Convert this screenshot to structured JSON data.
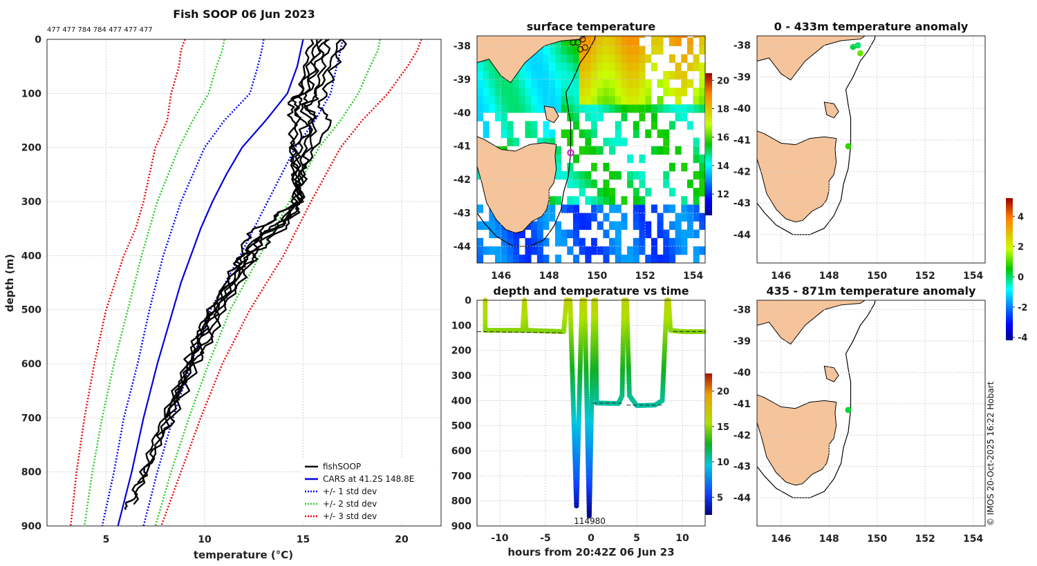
{
  "colors": {
    "fishsoop": "#000000",
    "cars": "#0000dd",
    "std1": "#0000ff",
    "std2": "#22cc22",
    "std3": "#ee0000",
    "land": "#f6c49a",
    "marker_magenta": "#cc33cc"
  },
  "chart_data": [
    {
      "id": "profile",
      "type": "line",
      "title": "Fish SOOP 06 Jun 2023",
      "subtitle": "477 477 784 784 477 477 477",
      "xlabel": "temperature (°C)",
      "ylabel": "depth (m)",
      "xlim": [
        2,
        22
      ],
      "ylim": [
        900,
        0
      ],
      "xticks": [
        5,
        10,
        15,
        20
      ],
      "yticks": [
        0,
        100,
        200,
        300,
        400,
        500,
        600,
        700,
        800,
        900
      ],
      "legend": [
        "fishSOOP",
        "CARS at 41.2S 148.8E",
        "+/- 1 std dev",
        "+/- 2 std dev",
        "+/- 3 std dev"
      ],
      "legend_position": "bottom-right",
      "cars": {
        "depth": [
          0,
          50,
          100,
          150,
          200,
          250,
          300,
          350,
          400,
          450,
          500,
          600,
          700,
          800,
          900
        ],
        "temp": [
          15.0,
          14.7,
          14.2,
          13.1,
          11.9,
          11.1,
          10.4,
          9.8,
          9.3,
          8.8,
          8.4,
          7.6,
          6.9,
          6.3,
          5.6
        ]
      },
      "std_curves": [
        {
          "name": "+/- 1 std dev",
          "depth": [
            0,
            20,
            50,
            100,
            150,
            200,
            300,
            400,
            500,
            600,
            700,
            800,
            900
          ],
          "lower": [
            13.0,
            12.9,
            12.7,
            12.3,
            11.0,
            10.0,
            8.8,
            7.9,
            7.2,
            6.6,
            5.9,
            5.4,
            4.8
          ],
          "upper": [
            17.0,
            16.9,
            16.7,
            16.4,
            15.6,
            14.6,
            13.2,
            11.8,
            10.3,
            9.3,
            8.4,
            7.6,
            6.9
          ]
        },
        {
          "name": "+/- 2 std dev",
          "depth": [
            0,
            20,
            50,
            100,
            150,
            200,
            300,
            400,
            500,
            600,
            700,
            800,
            900
          ],
          "lower": [
            11.0,
            10.9,
            10.6,
            10.2,
            9.4,
            8.7,
            7.6,
            6.8,
            6.1,
            5.4,
            4.8,
            4.3,
            3.9
          ],
          "upper": [
            18.9,
            18.8,
            18.4,
            17.8,
            16.9,
            15.8,
            14.3,
            12.8,
            11.3,
            10.2,
            9.2,
            8.3,
            7.5
          ]
        },
        {
          "name": "+/- 3 std dev",
          "depth": [
            0,
            20,
            50,
            100,
            150,
            200,
            300,
            350,
            400,
            500,
            600,
            700,
            800,
            900
          ],
          "lower": [
            9.0,
            8.8,
            8.7,
            8.3,
            8.1,
            7.5,
            6.9,
            6.5,
            5.9,
            5.0,
            4.4,
            3.9,
            3.5,
            3.2
          ],
          "upper": [
            21.0,
            20.8,
            20.3,
            19.3,
            18.0,
            16.9,
            15.4,
            14.7,
            14.0,
            12.3,
            10.9,
            9.8,
            8.8,
            7.8
          ]
        }
      ],
      "fishsoop_profiles": [
        {
          "depth": [
            0,
            50,
            100,
            120,
            150,
            200,
            250,
            300,
            340,
            360,
            400,
            430,
            500,
            550,
            600,
            700,
            750,
            800,
            850,
            870
          ],
          "temp": [
            15.7,
            15.3,
            14.8,
            14.3,
            14.5,
            14.4,
            14.5,
            14.6,
            13.2,
            12.2,
            11.8,
            11.5,
            10.2,
            9.6,
            9.1,
            7.9,
            7.3,
            6.9,
            6.3,
            6.0
          ]
        },
        {
          "depth": [
            0,
            50,
            100,
            120,
            150,
            200,
            250,
            300,
            340,
            360,
            400,
            430,
            500,
            550,
            600,
            700,
            750,
            800,
            820
          ],
          "temp": [
            16.1,
            15.7,
            15.1,
            14.7,
            14.7,
            14.5,
            14.6,
            14.8,
            13.8,
            12.9,
            12.3,
            11.6,
            10.6,
            9.9,
            9.3,
            8.2,
            7.6,
            7.0,
            6.6
          ]
        },
        {
          "depth": [
            0,
            50,
            100,
            130,
            150,
            200,
            250,
            300,
            340,
            370,
            400,
            440,
            500,
            560,
            600,
            700,
            740
          ],
          "temp": [
            16.9,
            16.3,
            15.7,
            15.2,
            15.6,
            14.8,
            14.7,
            14.9,
            14.3,
            13.3,
            12.6,
            11.9,
            11.0,
            10.2,
            9.6,
            8.4,
            7.8
          ]
        },
        {
          "depth": [
            0,
            50,
            100,
            130,
            150,
            200,
            250,
            300,
            340,
            370,
            400,
            440,
            500,
            560,
            600,
            700,
            800,
            860
          ],
          "temp": [
            17.1,
            16.6,
            16.1,
            15.8,
            16.5,
            15.6,
            14.9,
            14.6,
            13.9,
            12.6,
            12.1,
            11.7,
            10.8,
            10.1,
            9.4,
            8.1,
            7.1,
            6.4
          ]
        },
        {
          "depth": [
            0,
            50,
            100,
            120,
            160,
            200,
            250,
            300,
            330,
            360,
            400,
            430,
            500,
            550,
            600,
            700
          ],
          "temp": [
            15.4,
            15.1,
            14.9,
            14.5,
            15.1,
            14.6,
            14.7,
            14.8,
            13.5,
            12.8,
            11.9,
            11.6,
            10.3,
            9.8,
            9.3,
            8.1
          ]
        },
        {
          "depth": [
            0,
            50,
            100,
            120,
            160,
            210,
            250,
            300,
            340,
            380,
            400,
            430,
            500,
            550,
            580
          ],
          "temp": [
            15.9,
            15.5,
            15.3,
            14.9,
            15.4,
            15.0,
            14.9,
            14.8,
            13.9,
            12.8,
            12.0,
            11.4,
            10.4,
            9.8,
            9.5
          ]
        },
        {
          "depth": [
            0,
            50,
            100,
            120,
            150,
            210,
            250,
            300,
            340,
            360,
            400,
            430,
            500,
            540,
            600,
            700
          ],
          "temp": [
            16.3,
            16.0,
            15.6,
            15.2,
            15.6,
            15.2,
            15.0,
            14.9,
            14.1,
            13.0,
            12.5,
            11.8,
            10.5,
            9.8,
            9.2,
            8.0
          ]
        }
      ]
    },
    {
      "id": "surface-map",
      "type": "heatmap",
      "title": "surface temperature",
      "xlim": [
        145,
        154.5
      ],
      "ylim": [
        -44.5,
        -37.7
      ],
      "xticks": [
        146,
        148,
        150,
        152,
        154
      ],
      "yticks": [
        -38,
        -39,
        -40,
        -41,
        -42,
        -43,
        -44
      ],
      "colorbar": {
        "min": 10.5,
        "max": 20.5,
        "ticks": [
          12,
          14,
          16,
          18,
          20
        ]
      },
      "markers": [
        {
          "lon": 148.9,
          "lat": -41.2,
          "color": "#cc33cc"
        },
        {
          "lon": 149.0,
          "lat": -37.9
        },
        {
          "lon": 149.2,
          "lat": -37.9
        },
        {
          "lon": 149.4,
          "lat": -37.8
        },
        {
          "lon": 149.3,
          "lat": -38.1
        },
        {
          "lon": 149.5,
          "lat": -38.05
        }
      ]
    },
    {
      "id": "depth-time",
      "type": "scatter",
      "title": "depth and temperature vs time",
      "xlabel": "hours from 20:42Z 06 Jun 23",
      "xlim": [
        -12.5,
        12.5
      ],
      "ylim": [
        900,
        0
      ],
      "xticks": [
        -10,
        -5,
        0,
        5,
        10
      ],
      "yticks": [
        0,
        100,
        200,
        300,
        400,
        500,
        600,
        700,
        800,
        900
      ],
      "annotation": "114980",
      "colorbar": {
        "min": 2.5,
        "max": 22.5,
        "ticks": [
          5,
          10,
          15,
          20
        ]
      }
    },
    {
      "id": "anomaly-0-433",
      "type": "scatter",
      "title": "0 - 433m temperature anomaly",
      "xlim": [
        145,
        154.5
      ],
      "ylim": [
        -44.9,
        -37.7
      ],
      "xticks": [
        146,
        148,
        150,
        152,
        154
      ],
      "yticks": [
        -38,
        -39,
        -40,
        -41,
        -42,
        -43,
        -44
      ],
      "points": [
        {
          "lon": 149.0,
          "lat": -38.05,
          "anom": 0.2
        },
        {
          "lon": 149.2,
          "lat": -38.0,
          "anom": 0.0
        },
        {
          "lon": 149.3,
          "lat": -38.25,
          "anom": 1.2
        },
        {
          "lon": 148.8,
          "lat": -41.2,
          "anom": 0.8
        }
      ]
    },
    {
      "id": "anomaly-435-871",
      "type": "scatter",
      "title": "435 - 871m temperature anomaly",
      "xlim": [
        145,
        154.5
      ],
      "ylim": [
        -44.9,
        -37.7
      ],
      "xticks": [
        146,
        148,
        150,
        152,
        154
      ],
      "yticks": [
        -38,
        -39,
        -40,
        -41,
        -42,
        -43,
        -44
      ],
      "points": [
        {
          "lon": 148.8,
          "lat": -41.2,
          "anom": 0.2
        }
      ],
      "colorbar": {
        "min": -4.2,
        "max": 5.2,
        "ticks": [
          -4,
          -2,
          0,
          2,
          4
        ]
      }
    }
  ],
  "footer": {
    "credit": "© IMOS 20-Oct-2025 16:22 Hobart"
  }
}
